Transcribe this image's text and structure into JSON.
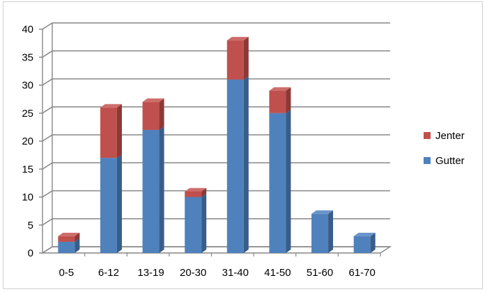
{
  "chart_data": {
    "type": "bar",
    "stacked": true,
    "style": "3d-column",
    "categories": [
      "0-5",
      "6-12",
      "13-19",
      "20-30",
      "31-40",
      "41-50",
      "51-60",
      "61-70"
    ],
    "series": [
      {
        "name": "Gutter",
        "values": [
          2,
          17,
          22,
          10,
          31,
          25,
          7,
          3
        ],
        "color": "#4F81BD",
        "side_color": "#385D8A",
        "top_color": "#6A94C9"
      },
      {
        "name": "Jenter",
        "values": [
          1,
          9,
          5,
          1,
          7,
          4,
          0,
          0
        ],
        "color": "#C0504D",
        "side_color": "#8C3836",
        "top_color": "#CE6D6A"
      }
    ],
    "y_ticks": [
      "0",
      "5",
      "10",
      "15",
      "20",
      "25",
      "30",
      "35",
      "40"
    ],
    "ylim": [
      0,
      40
    ],
    "grid": true,
    "legend_position": "right",
    "legend": [
      {
        "label": "Jenter",
        "color": "#C0504D"
      },
      {
        "label": "Gutter",
        "color": "#4F81BD"
      }
    ]
  }
}
